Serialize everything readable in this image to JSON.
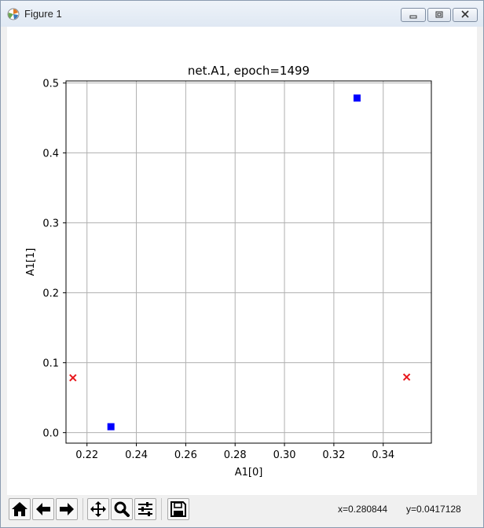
{
  "window": {
    "title": "Figure 1",
    "icons": [
      "matplotlib-icon",
      "minimize-icon",
      "maximize-icon",
      "close-icon"
    ]
  },
  "chart_data": {
    "type": "scatter",
    "title": "net.A1, epoch=1499",
    "xlabel": "A1[0]",
    "ylabel": "A1[1]",
    "xlim": [
      0.2115,
      0.3595
    ],
    "ylim": [
      -0.015,
      0.503
    ],
    "xticks": [
      0.22,
      0.24,
      0.26,
      0.28,
      0.3,
      0.32,
      0.34
    ],
    "xtick_labels": [
      "0.22",
      "0.24",
      "0.26",
      "0.28",
      "0.30",
      "0.32",
      "0.34"
    ],
    "yticks": [
      0.0,
      0.1,
      0.2,
      0.3,
      0.4,
      0.5
    ],
    "ytick_labels": [
      "0.0",
      "0.1",
      "0.2",
      "0.3",
      "0.4",
      "0.5"
    ],
    "grid": true,
    "series": [
      {
        "marker": "square",
        "color": "#0000ff",
        "x": [
          0.2297,
          0.3294
        ],
        "y": [
          0.0085,
          0.4785
        ]
      },
      {
        "marker": "x",
        "color": "#e8171c",
        "x": [
          0.2143,
          0.3495
        ],
        "y": [
          0.0785,
          0.0795
        ]
      }
    ]
  },
  "toolbar": {
    "tools": [
      "home-icon",
      "back-arrow-icon",
      "forward-arrow-icon",
      "pan-icon",
      "zoom-icon",
      "configure-subplots-icon",
      "save-icon"
    ],
    "x_readout": "x=0.280844",
    "y_readout": "y=0.0417128"
  }
}
